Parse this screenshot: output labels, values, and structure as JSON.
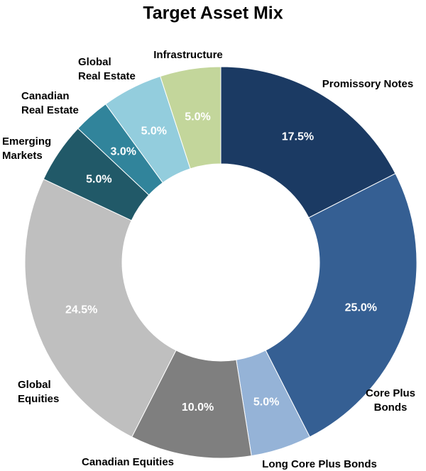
{
  "chart_data": {
    "type": "donut",
    "title": "Target Asset Mix",
    "categories": [
      "Promissory Notes",
      "Core Plus Bonds",
      "Long Core Plus Bonds",
      "Canadian Equities",
      "Global Equities",
      "Emerging Markets",
      "Canadian Real Estate",
      "Global Real Estate",
      "Infrastructure"
    ],
    "values": [
      17.5,
      25.0,
      5.0,
      10.0,
      24.5,
      5.0,
      3.0,
      5.0,
      5.0
    ],
    "value_labels": [
      "17.5%",
      "25.0%",
      "5.0%",
      "10.0%",
      "24.5%",
      "5.0%",
      "3.0%",
      "5.0%",
      "5.0%"
    ],
    "colors": [
      "#1b3a63",
      "#355f93",
      "#95b3d7",
      "#7f7f7f",
      "#bfbfbf",
      "#215968",
      "#31849b",
      "#93cddd",
      "#c3d69b"
    ]
  }
}
